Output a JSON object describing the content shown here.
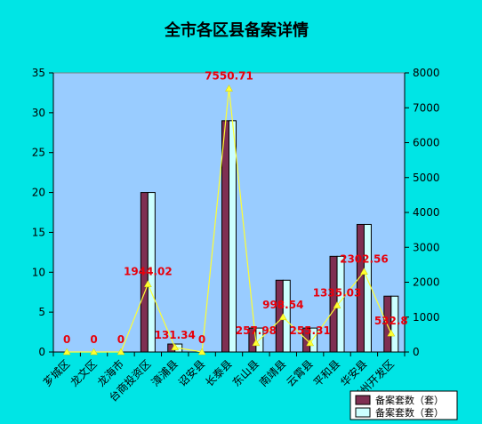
{
  "chart_data": {
    "type": "bar",
    "title": "全市各区县备案详情",
    "categories": [
      "芗城区",
      "龙文区",
      "龙海市",
      "台商投资区",
      "漳浦县",
      "诏安县",
      "长泰县",
      "东山县",
      "南靖县",
      "云霄县",
      "平和县",
      "华安县",
      "漳州开发区"
    ],
    "series": [
      {
        "name": "备案套数（套）",
        "values": [
          0,
          0,
          0,
          20,
          1,
          0,
          29,
          3,
          9,
          3,
          12,
          16,
          7
        ],
        "color": "#7F2F52",
        "axis": "left"
      },
      {
        "name": "备案套数（套）",
        "values": [
          0,
          0,
          0,
          20,
          1,
          0,
          29,
          3,
          9,
          3,
          12,
          16,
          7
        ],
        "color": "#CCFFFF",
        "axis": "left"
      }
    ],
    "line": {
      "values": [
        0,
        0,
        0,
        1944.02,
        131.34,
        0,
        7550.71,
        257.98,
        998.54,
        255.31,
        1335.03,
        2302.56,
        532.8
      ],
      "labels": [
        "0",
        "0",
        "0",
        "1944.02",
        "131.34",
        "0",
        "7550.71",
        "257.98",
        "998.54",
        "255.31",
        "1335.03",
        "2302.56",
        "532.8"
      ],
      "color": "#FFFF33",
      "marker_color": "#FFFF33",
      "label_color": "#E8000B",
      "axis": "right"
    },
    "y_left": {
      "min": 0,
      "max": 35,
      "step": 5,
      "ticks": [
        "0",
        "5",
        "10",
        "15",
        "20",
        "25",
        "30",
        "35"
      ]
    },
    "y_right": {
      "min": 0,
      "max": 8000,
      "step": 1000,
      "ticks": [
        "0",
        "1000",
        "2000",
        "3000",
        "4000",
        "5000",
        "6000",
        "7000",
        "8000"
      ]
    },
    "legend_position": "bottom-right",
    "colors": {
      "background": "#00E5E5",
      "plot_area": "#99CCFF",
      "title": "#000000"
    }
  }
}
